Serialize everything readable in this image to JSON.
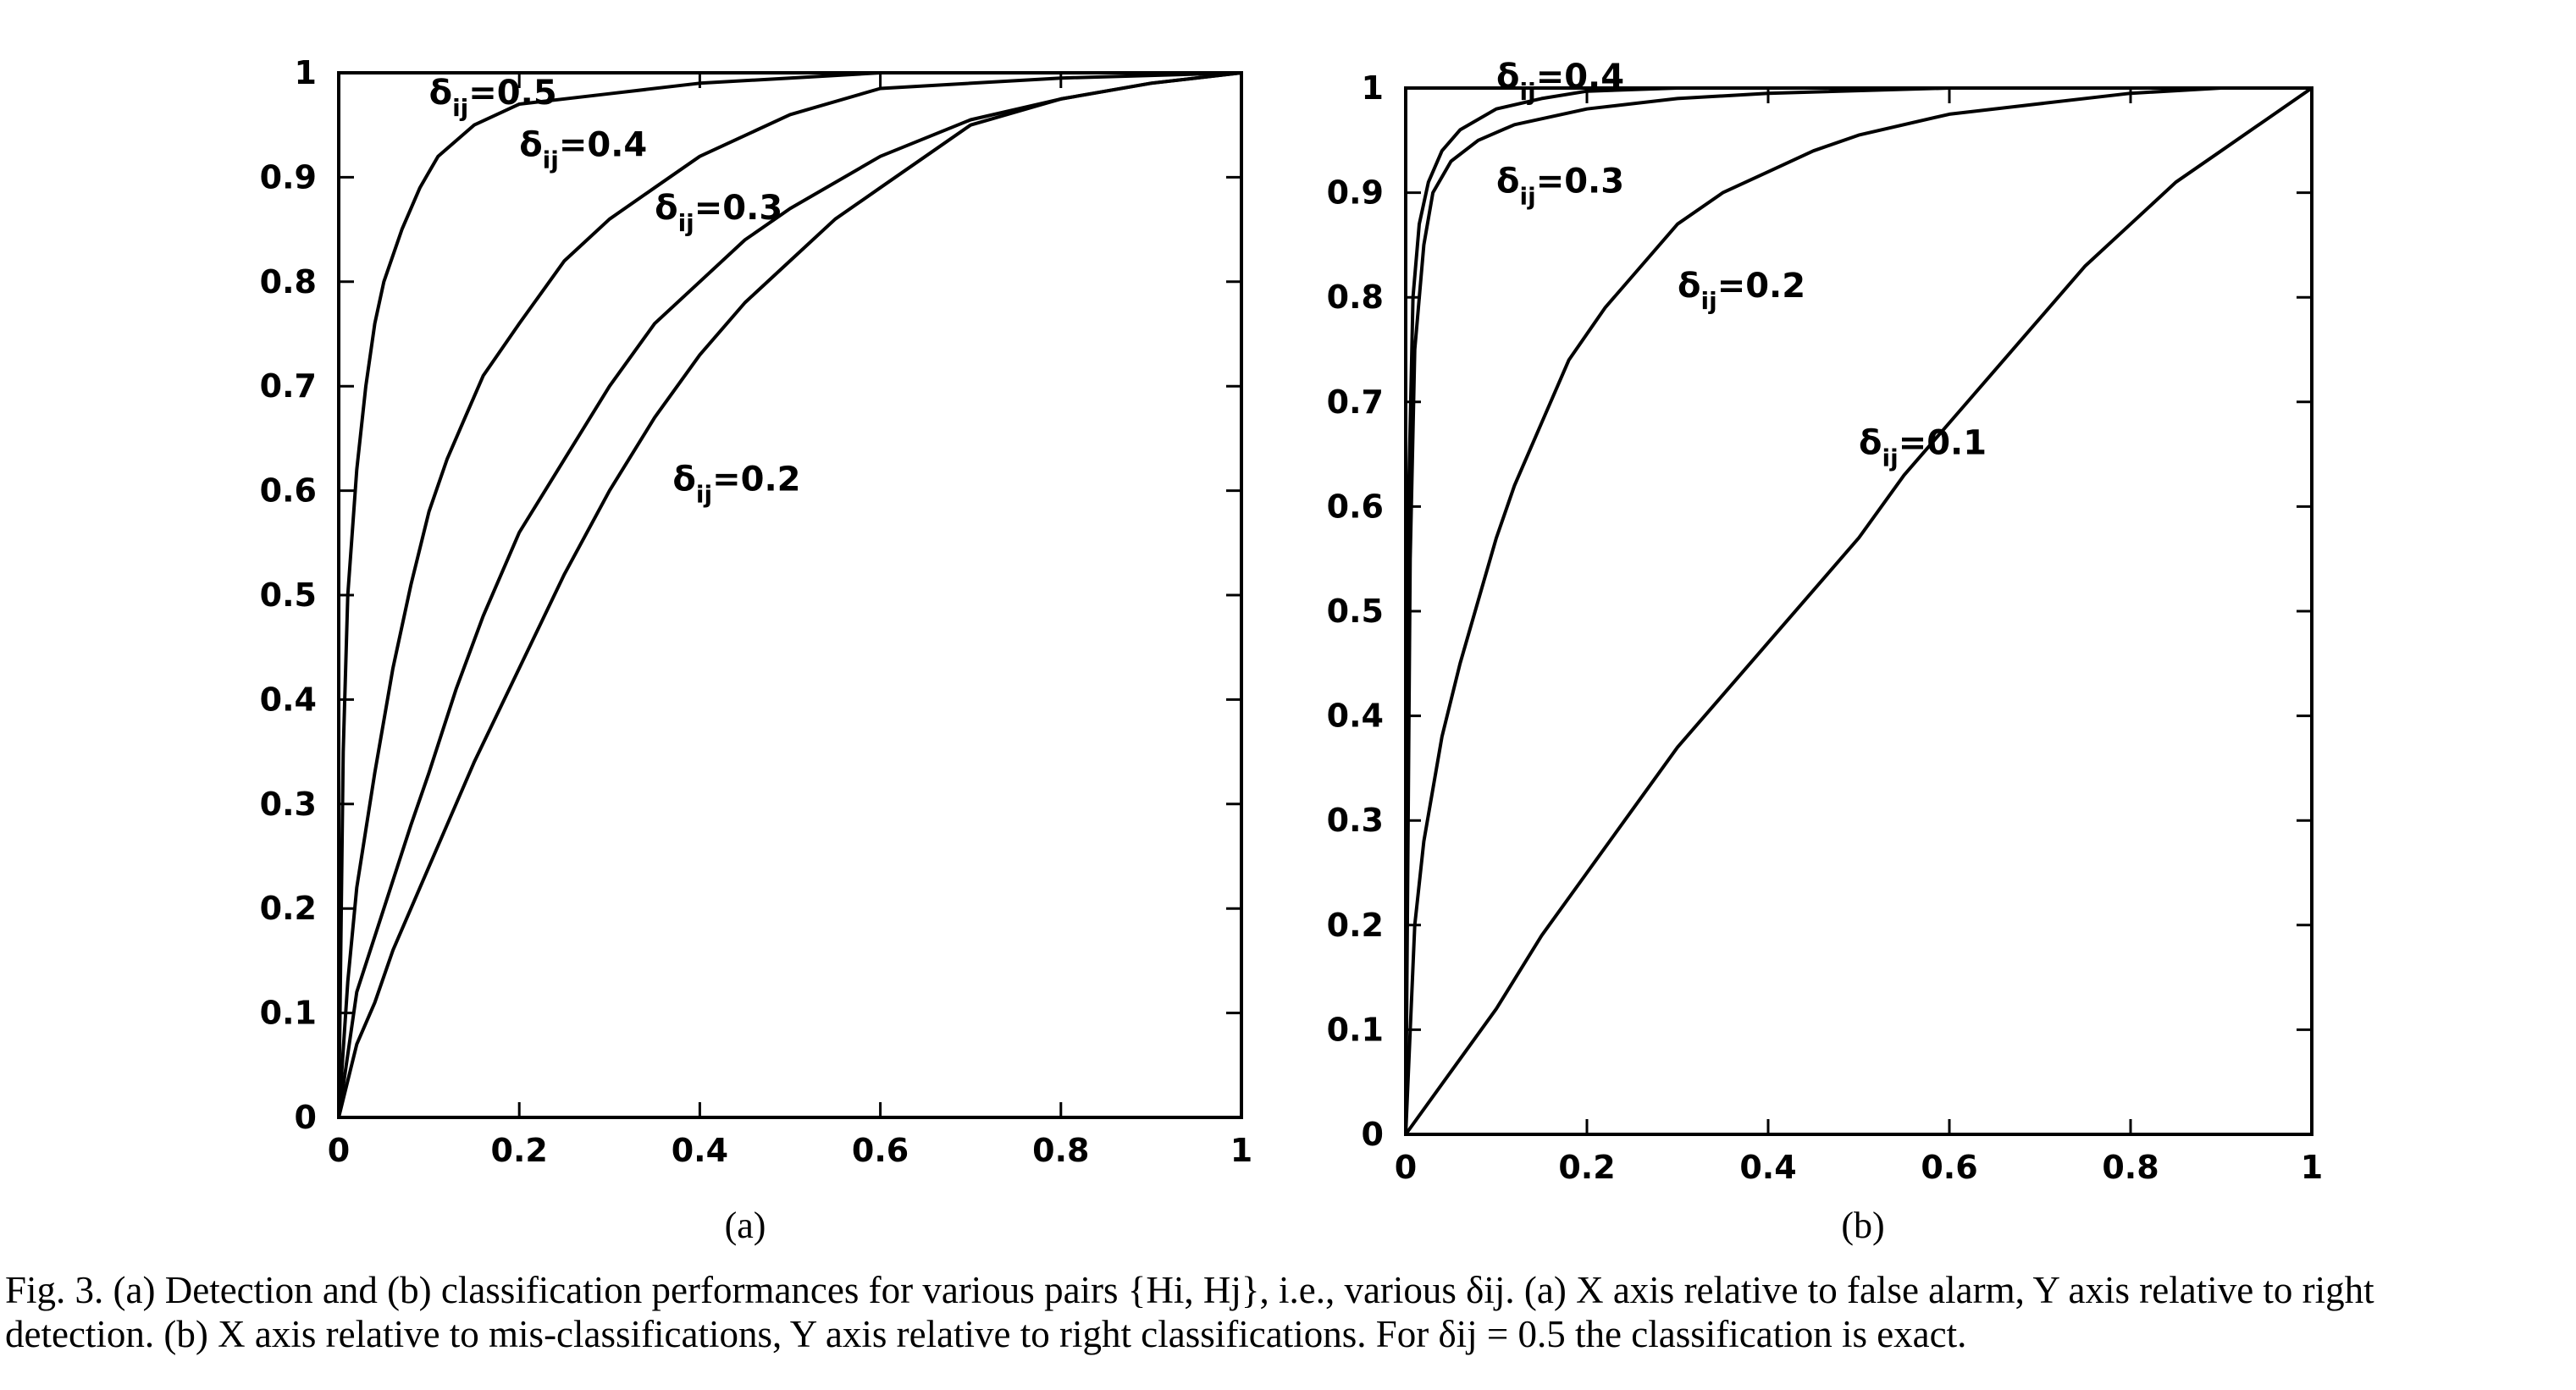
{
  "chart_data": [
    {
      "panel": "(a)",
      "type": "line",
      "xlim": [
        0,
        1
      ],
      "ylim": [
        0,
        1
      ],
      "xticks": [
        "0",
        "0.2",
        "0.4",
        "0.6",
        "0.8",
        "1"
      ],
      "yticks": [
        "0",
        "0.1",
        "0.2",
        "0.3",
        "0.4",
        "0.5",
        "0.6",
        "0.7",
        "0.8",
        "0.9",
        "1"
      ],
      "grid": false,
      "series": [
        {
          "name": "δij=0.5",
          "x": [
            0,
            0.005,
            0.01,
            0.02,
            0.03,
            0.04,
            0.05,
            0.07,
            0.09,
            0.11,
            0.15,
            0.2,
            0.3,
            0.4,
            0.5,
            0.6,
            0.8,
            1.0
          ],
          "y": [
            0,
            0.35,
            0.5,
            0.62,
            0.7,
            0.76,
            0.8,
            0.85,
            0.89,
            0.92,
            0.95,
            0.97,
            0.98,
            0.99,
            0.995,
            1.0,
            1.0,
            1.0
          ]
        },
        {
          "name": "δij=0.4",
          "x": [
            0,
            0.01,
            0.02,
            0.04,
            0.06,
            0.08,
            0.1,
            0.12,
            0.14,
            0.16,
            0.2,
            0.25,
            0.3,
            0.35,
            0.4,
            0.5,
            0.6,
            0.8,
            1.0
          ],
          "y": [
            0,
            0.13,
            0.22,
            0.33,
            0.43,
            0.51,
            0.58,
            0.63,
            0.67,
            0.71,
            0.76,
            0.82,
            0.86,
            0.89,
            0.92,
            0.96,
            0.985,
            0.995,
            1.0
          ]
        },
        {
          "name": "δij=0.3",
          "x": [
            0,
            0.02,
            0.05,
            0.08,
            0.1,
            0.13,
            0.16,
            0.2,
            0.25,
            0.3,
            0.35,
            0.4,
            0.45,
            0.5,
            0.6,
            0.7,
            0.8,
            0.9,
            1.0
          ],
          "y": [
            0,
            0.12,
            0.2,
            0.28,
            0.33,
            0.41,
            0.48,
            0.56,
            0.63,
            0.7,
            0.76,
            0.8,
            0.84,
            0.87,
            0.92,
            0.955,
            0.975,
            0.99,
            1.0
          ]
        },
        {
          "name": "δij=0.2",
          "x": [
            0,
            0.02,
            0.04,
            0.06,
            0.08,
            0.1,
            0.12,
            0.15,
            0.2,
            0.25,
            0.3,
            0.35,
            0.4,
            0.45,
            0.5,
            0.55,
            0.6,
            0.65,
            0.7,
            0.8,
            0.9,
            1.0
          ],
          "y": [
            0,
            0.07,
            0.11,
            0.16,
            0.2,
            0.24,
            0.28,
            0.34,
            0.43,
            0.52,
            0.6,
            0.67,
            0.73,
            0.78,
            0.82,
            0.86,
            0.89,
            0.92,
            0.95,
            0.975,
            0.99,
            1.0
          ]
        }
      ],
      "annotations": [
        {
          "text": "δij=0.5",
          "x": 0.1,
          "y": 0.97
        },
        {
          "text": "δij=0.4",
          "x": 0.2,
          "y": 0.92
        },
        {
          "text": "δij=0.3",
          "x": 0.35,
          "y": 0.86
        },
        {
          "text": "δij=0.2",
          "x": 0.37,
          "y": 0.6
        }
      ]
    },
    {
      "panel": "(b)",
      "type": "line",
      "xlim": [
        0,
        1
      ],
      "ylim": [
        0,
        1
      ],
      "xticks": [
        "0",
        "0.2",
        "0.4",
        "0.6",
        "0.8",
        "1"
      ],
      "yticks": [
        "0",
        "0.1",
        "0.2",
        "0.3",
        "0.4",
        "0.5",
        "0.6",
        "0.7",
        "0.8",
        "0.9",
        "1"
      ],
      "grid": false,
      "series": [
        {
          "name": "δij=0.4",
          "x": [
            0,
            0.003,
            0.008,
            0.015,
            0.025,
            0.04,
            0.06,
            0.1,
            0.15,
            0.2,
            0.3,
            1.0
          ],
          "y": [
            0,
            0.6,
            0.8,
            0.87,
            0.91,
            0.94,
            0.96,
            0.98,
            0.99,
            0.997,
            1.0,
            1.0
          ]
        },
        {
          "name": "δij=0.3",
          "x": [
            0,
            0.005,
            0.01,
            0.02,
            0.03,
            0.05,
            0.08,
            0.12,
            0.2,
            0.3,
            0.4,
            0.6,
            1.0
          ],
          "y": [
            0,
            0.55,
            0.75,
            0.85,
            0.9,
            0.93,
            0.95,
            0.965,
            0.98,
            0.99,
            0.995,
            1.0,
            1.0
          ]
        },
        {
          "name": "δij=0.2",
          "x": [
            0,
            0.01,
            0.02,
            0.04,
            0.06,
            0.08,
            0.1,
            0.12,
            0.15,
            0.18,
            0.22,
            0.25,
            0.3,
            0.35,
            0.4,
            0.45,
            0.5,
            0.6,
            0.7,
            0.8,
            0.9,
            1.0
          ],
          "y": [
            0,
            0.2,
            0.28,
            0.38,
            0.45,
            0.51,
            0.57,
            0.62,
            0.68,
            0.74,
            0.79,
            0.82,
            0.87,
            0.9,
            0.92,
            0.94,
            0.955,
            0.975,
            0.985,
            0.995,
            1.0,
            1.0
          ]
        },
        {
          "name": "δij=0.1",
          "x": [
            0,
            0.05,
            0.1,
            0.15,
            0.2,
            0.25,
            0.3,
            0.35,
            0.4,
            0.45,
            0.5,
            0.55,
            0.6,
            0.65,
            0.7,
            0.75,
            0.8,
            0.85,
            0.9,
            0.95,
            1.0
          ],
          "y": [
            0,
            0.06,
            0.12,
            0.19,
            0.25,
            0.31,
            0.37,
            0.42,
            0.47,
            0.52,
            0.57,
            0.63,
            0.68,
            0.73,
            0.78,
            0.83,
            0.87,
            0.91,
            0.94,
            0.97,
            1.0
          ]
        }
      ],
      "annotations": [
        {
          "text": "δij=0.4",
          "x": 0.1,
          "y": 1.0
        },
        {
          "text": "δij=0.3",
          "x": 0.1,
          "y": 0.9
        },
        {
          "text": "δij=0.2",
          "x": 0.3,
          "y": 0.8
        },
        {
          "text": "δij=0.1",
          "x": 0.5,
          "y": 0.65
        }
      ]
    }
  ],
  "caption": {
    "line1": "Fig. 3.    (a) Detection and (b) classification performances for various pairs {Hi, Hj}, i.e., various δij. (a) X axis relative to false alarm, Y axis relative to right",
    "line2": "detection. (b) X axis relative to mis-classifications, Y axis relative to right classifications. For δij = 0.5 the classification is exact."
  }
}
